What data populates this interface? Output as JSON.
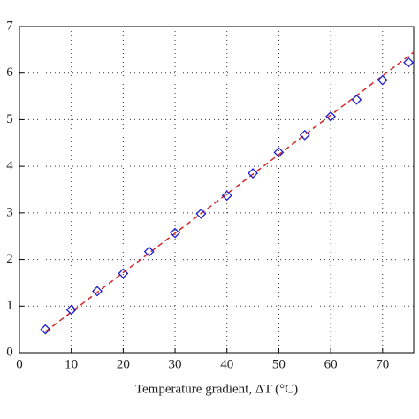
{
  "chart_data": {
    "type": "scatter",
    "x_label": "Temperature gradient, ΔT (°C)",
    "x": [
      5,
      10,
      15,
      20,
      25,
      30,
      35,
      40,
      45,
      50,
      55,
      60,
      65,
      70,
      75
    ],
    "values": [
      0.5,
      0.92,
      1.32,
      1.7,
      2.17,
      2.57,
      2.98,
      3.37,
      3.85,
      4.3,
      4.67,
      5.07,
      5.43,
      5.85,
      6.23
    ],
    "color": "#1f1fd0",
    "marker": "diamond",
    "fit": {
      "x": [
        5,
        76
      ],
      "values": [
        0.45,
        6.45
      ],
      "color": "#d62728",
      "style": "dashed"
    },
    "xlim": [
      0,
      76
    ],
    "ylim": [
      0,
      7
    ],
    "xticks": [
      0,
      10,
      20,
      30,
      40,
      50,
      60,
      70
    ],
    "yticks": [
      0,
      1,
      2,
      3,
      4,
      5,
      6,
      7
    ],
    "grid": true
  }
}
